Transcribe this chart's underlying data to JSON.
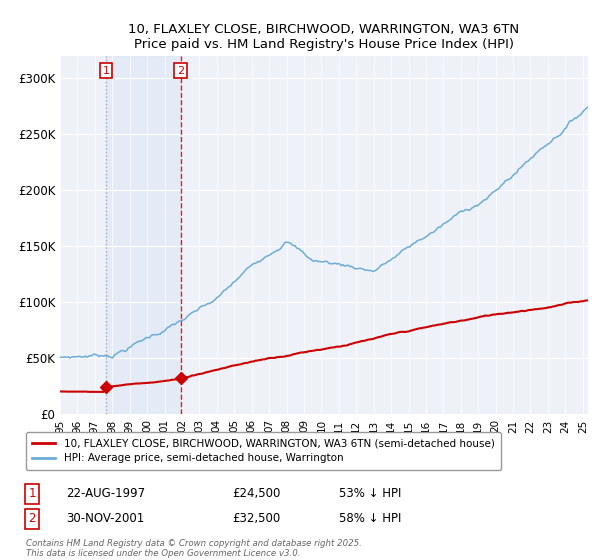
{
  "title_line1": "10, FLAXLEY CLOSE, BIRCHWOOD, WARRINGTON, WA3 6TN",
  "title_line2": "Price paid vs. HM Land Registry's House Price Index (HPI)",
  "ylim": [
    0,
    320000
  ],
  "yticks": [
    0,
    50000,
    100000,
    150000,
    200000,
    250000,
    300000
  ],
  "ytick_labels": [
    "£0",
    "£50K",
    "£100K",
    "£150K",
    "£200K",
    "£250K",
    "£300K"
  ],
  "hpi_color": "#6dacd8",
  "price_color": "#cc0000",
  "sale1_date": 1997.63,
  "sale1_price": 24500,
  "sale2_date": 2001.92,
  "sale2_price": 32500,
  "background_color": "#eef2f8",
  "legend_label1": "10, FLAXLEY CLOSE, BIRCHWOOD, WARRINGTON, WA3 6TN (semi-detached house)",
  "legend_label2": "HPI: Average price, semi-detached house, Warrington",
  "footer": "Contains HM Land Registry data © Crown copyright and database right 2025.\nThis data is licensed under the Open Government Licence v3.0.",
  "note1_label": "1",
  "note1_date": "22-AUG-1997",
  "note1_price": "£24,500",
  "note1_hpi": "53% ↓ HPI",
  "note2_label": "2",
  "note2_date": "30-NOV-2001",
  "note2_price": "£32,500",
  "note2_hpi": "58% ↓ HPI",
  "xmin": 1995,
  "xmax": 2025.3
}
